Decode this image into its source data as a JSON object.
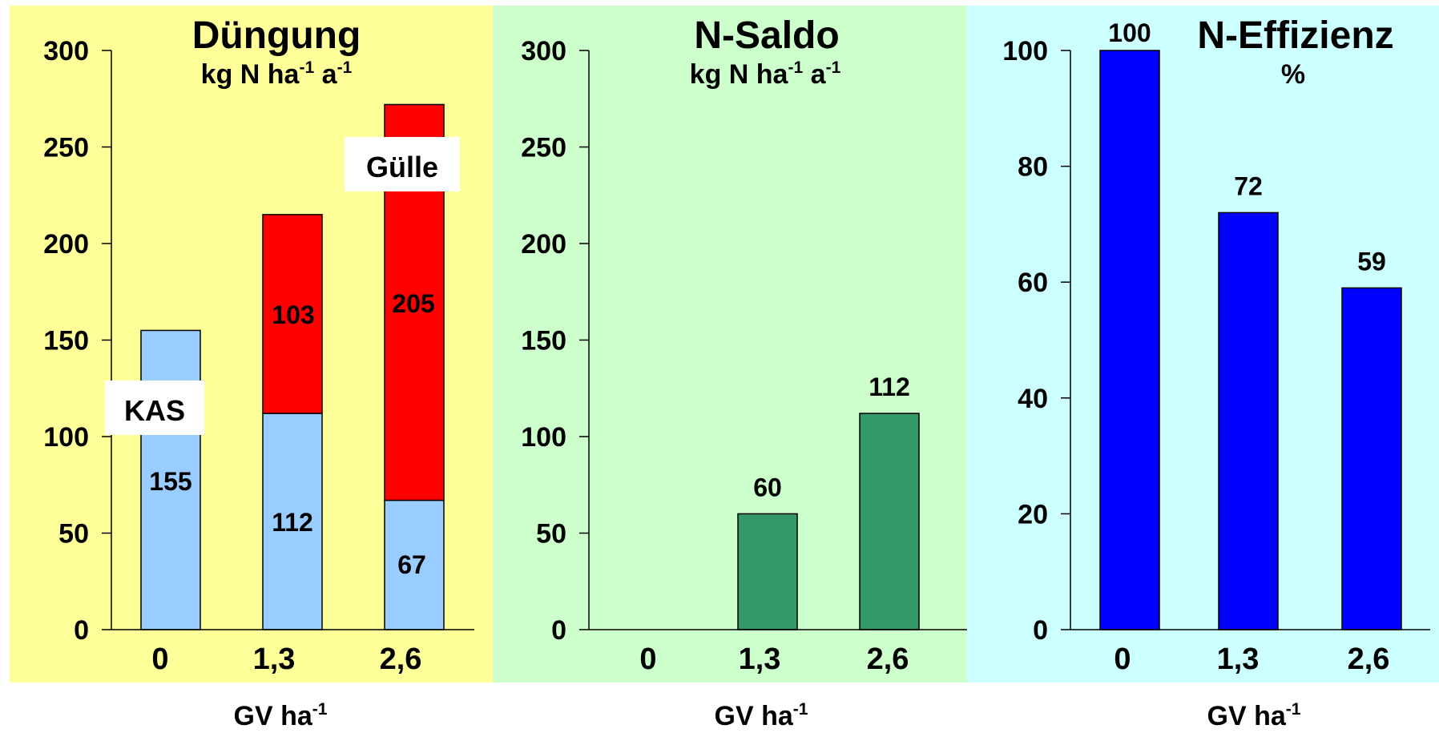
{
  "chart_data": [
    {
      "type": "bar",
      "stacked": true,
      "title": "Düngung",
      "subtitle": {
        "base": "kg N ha",
        "exp1": "-1",
        "mid": " a",
        "exp2": "-1"
      },
      "categories": [
        "0",
        "1,3",
        "2,6"
      ],
      "xlabel": {
        "base": "GV ha",
        "exp": "-1"
      },
      "ylim": [
        0,
        300
      ],
      "yticks": [
        0,
        50,
        100,
        150,
        200,
        250,
        300
      ],
      "background": "#ffff99",
      "series": [
        {
          "name": "KAS",
          "color": "#99ccff",
          "values": [
            155,
            112,
            67
          ]
        },
        {
          "name": "Gülle",
          "color": "#ff0000",
          "values": [
            0,
            103,
            205
          ]
        }
      ]
    },
    {
      "type": "bar",
      "title": "N-Saldo",
      "subtitle": {
        "base": "kg N ha",
        "exp1": "-1",
        "mid": " a",
        "exp2": "-1"
      },
      "categories": [
        "0",
        "1,3",
        "2,6"
      ],
      "xlabel": {
        "base": "GV ha",
        "exp": "-1"
      },
      "ylim": [
        0,
        300
      ],
      "yticks": [
        0,
        50,
        100,
        150,
        200,
        250,
        300
      ],
      "background": "#ccffcc",
      "series": [
        {
          "color": "#339966",
          "values": [
            0,
            60,
            112
          ],
          "labels": [
            "",
            "60",
            "112"
          ]
        }
      ]
    },
    {
      "type": "bar",
      "title": "N-Effizienz",
      "subtitle": {
        "base": "%"
      },
      "categories": [
        "0",
        "1,3",
        "2,6"
      ],
      "xlabel": {
        "base": "GV ha",
        "exp": "-1"
      },
      "ylim": [
        0,
        100
      ],
      "yticks": [
        0,
        20,
        40,
        60,
        80,
        100
      ],
      "background": "#ccffff",
      "series": [
        {
          "color": "#0000ff",
          "values": [
            100,
            72,
            59
          ],
          "labels": [
            "100",
            "72",
            "59"
          ]
        }
      ]
    }
  ]
}
